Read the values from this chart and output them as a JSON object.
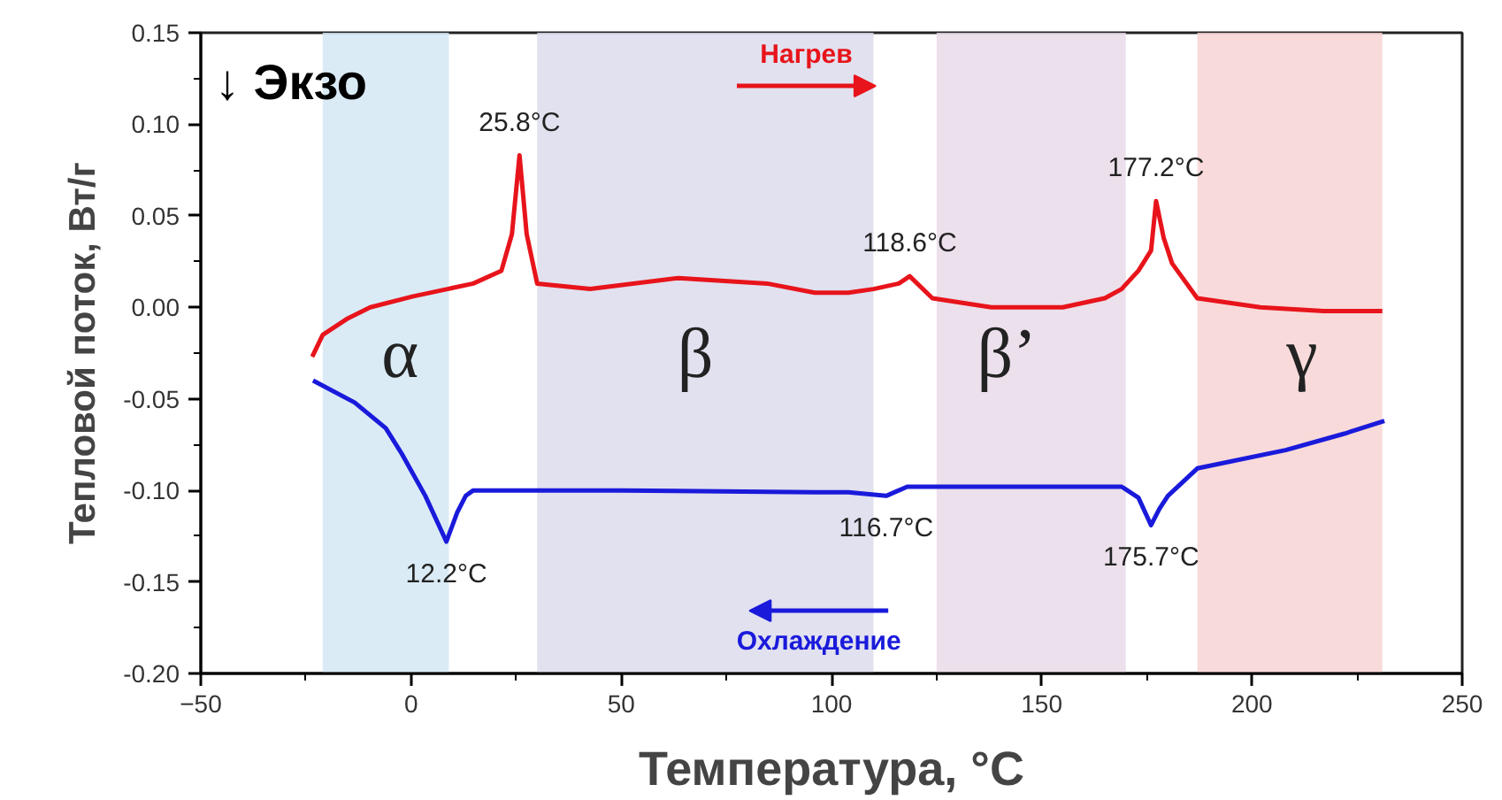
{
  "chart_data": {
    "type": "line",
    "xlabel": "Температура, °C",
    "ylabel": "Тепловой поток, Вт/г",
    "xlim": [
      -50,
      250
    ],
    "xticks": [
      -50,
      0,
      50,
      100,
      150,
      200,
      250
    ],
    "ylim": [
      -0.2,
      0.15
    ],
    "yticks": [
      {
        "value": 0.15,
        "label": "0.15"
      },
      {
        "value": 0.1,
        "label": "0.10"
      },
      {
        "value": 0.05,
        "label": "0.05"
      },
      {
        "value": 0,
        "label": "0.00"
      },
      {
        "value": -0.05,
        "label": "-0.05"
      },
      {
        "value": -0.1,
        "label": "-0.10"
      },
      {
        "value": -0.15,
        "label": "-0.15"
      },
      {
        "value": -0.2,
        "label": "-0.20"
      }
    ],
    "grid": false,
    "legend": "bottom",
    "marker": "none",
    "line_style": "solid",
    "series": [
      {
        "name": "Нагрев",
        "color": "#e8141b",
        "x": [
          -23.5,
          -21,
          -15,
          -9.7,
          0.5,
          14.8,
          21.5,
          24,
          25.8,
          27.5,
          30,
          42.6,
          63.6,
          84.7,
          96,
          104,
          110,
          116,
          118.6,
          124,
          138,
          155,
          165,
          169,
          173,
          176,
          177.2,
          179,
          181,
          187,
          202,
          217,
          231
        ],
        "values": [
          -0.027,
          -0.015,
          -0.006,
          0.0,
          0.006,
          0.013,
          0.02,
          0.04,
          0.083,
          0.04,
          0.013,
          0.01,
          0.016,
          0.013,
          0.008,
          0.008,
          0.01,
          0.013,
          0.017,
          0.005,
          0.0,
          0.0,
          0.005,
          0.01,
          0.02,
          0.031,
          0.058,
          0.038,
          0.024,
          0.005,
          0.0,
          -0.002,
          -0.002
        ]
      },
      {
        "name": "Охлаждение",
        "color": "#1a1adb",
        "x": [
          -23.3,
          -13.4,
          -6,
          -2.2,
          3.4,
          8.4,
          11,
          13,
          14.8,
          50,
          96,
          104,
          113,
          118,
          140,
          169,
          173,
          176,
          178,
          180,
          187,
          208,
          222,
          231.5
        ],
        "values": [
          -0.04,
          -0.052,
          -0.066,
          -0.08,
          -0.103,
          -0.128,
          -0.112,
          -0.103,
          -0.1,
          -0.1,
          -0.101,
          -0.101,
          -0.103,
          -0.098,
          -0.098,
          -0.098,
          -0.104,
          -0.119,
          -0.11,
          -0.103,
          -0.088,
          -0.078,
          -0.069,
          -0.062
        ]
      }
    ],
    "bands": [
      {
        "axis": "x",
        "from": -21,
        "to": 9,
        "color": "#d4e8f5"
      },
      {
        "axis": "x",
        "from": 30,
        "to": 110,
        "color": "#dcdcec"
      },
      {
        "axis": "x",
        "from": 125,
        "to": 170,
        "color": "#e8dae8"
      },
      {
        "axis": "x",
        "from": 187,
        "to": 231,
        "color": "#f7d3d3"
      }
    ],
    "annotations": [
      "↓ Экзо",
      "α",
      "β",
      "β’",
      "γ",
      {
        "text": "25.8°C",
        "x": 25.8,
        "y": 0.083
      },
      {
        "text": "118.6°C",
        "x": 118.6,
        "y": 0.017
      },
      {
        "text": "177.2°C",
        "x": 177.2,
        "y": 0.058
      },
      {
        "text": "12.2°C",
        "x": 8.4,
        "y": -0.128
      },
      {
        "text": "116.7°C",
        "x": 113,
        "y": -0.103
      },
      {
        "text": "175.7°C",
        "x": 176,
        "y": -0.119
      }
    ]
  }
}
